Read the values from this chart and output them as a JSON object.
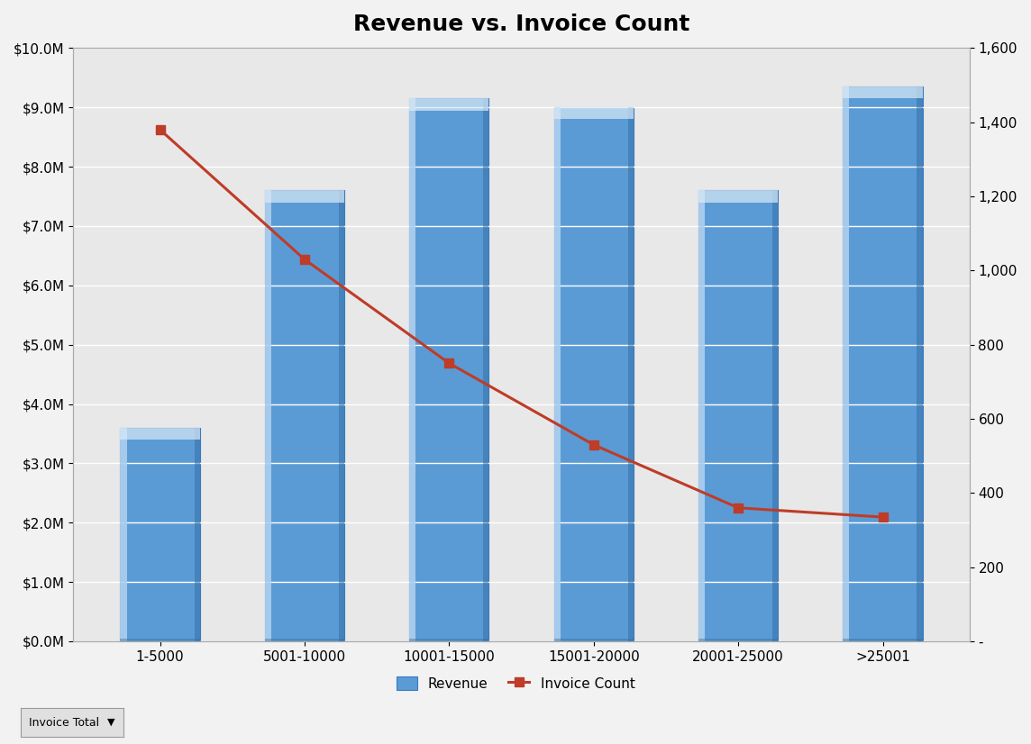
{
  "title": "Revenue vs. Invoice Count",
  "categories": [
    "1-5000",
    "5001-10000",
    "10001-15000",
    "15001-20000",
    "20001-25000",
    ">25001"
  ],
  "revenue": [
    3600000,
    7600000,
    9150000,
    9000000,
    7600000,
    9350000
  ],
  "invoice_count": [
    1380,
    1030,
    750,
    530,
    360,
    335
  ],
  "bar_color_main": "#5b9bd5",
  "bar_color_light": "#aed0ee",
  "bar_color_highlight": "#daeaf7",
  "bar_color_dark": "#2e6da4",
  "bar_color_edge": "#3a7abf",
  "line_color": "#be3c28",
  "line_marker": "s",
  "plot_bg_color": "#e8e8e8",
  "outer_bg_color": "#f2f2f2",
  "ylim_left": [
    0,
    10000000
  ],
  "ylim_right": [
    0,
    1600
  ],
  "ytick_left_step": 1000000,
  "ytick_right_step": 200,
  "legend_labels": [
    "Revenue",
    "Invoice Count"
  ],
  "bottom_label": "Invoice Total",
  "title_fontsize": 18,
  "tick_fontsize": 11,
  "legend_fontsize": 11
}
